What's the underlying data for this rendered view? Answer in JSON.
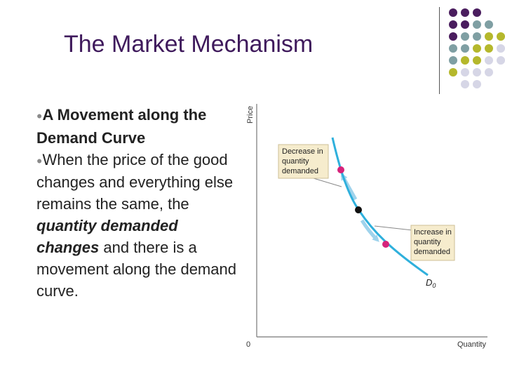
{
  "slide": {
    "title": "The Market Mechanism",
    "bullet1_text": "A Movement along the Demand Curve",
    "bullet2_text_a": "When the price of the good changes and everything else remains the same, the ",
    "bullet2_emphasis": "quantity demanded changes",
    "bullet2_text_b": " and there is a movement along the demand curve."
  },
  "decoration": {
    "dot_colors": {
      "purple": "#4a1d5e",
      "slate": "#7f9fa3",
      "olive": "#b5b82c",
      "lavender": "#d6d6e6"
    }
  },
  "diagram": {
    "y_axis_label": "Price",
    "x_axis_label": "Quantity",
    "origin_label": "0",
    "curve_label": "D",
    "curve_subscript": "0",
    "callout_decrease": [
      "Decrease in",
      "quantity",
      "demanded"
    ],
    "callout_increase": [
      "Increase in",
      "quantity",
      "demanded"
    ],
    "colors": {
      "curve": "#2fb0dc",
      "arrow": "#9fd3ec",
      "point_pink": "#d6237a",
      "point_black": "#111111",
      "callout_fill": "#f6eccd",
      "callout_border": "#cdbf96"
    }
  }
}
